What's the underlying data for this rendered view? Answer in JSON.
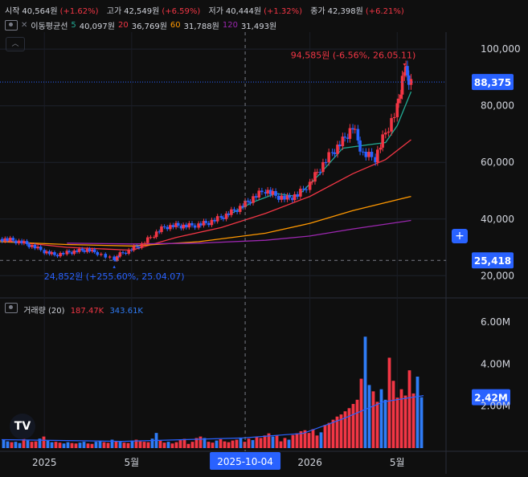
{
  "header": {
    "open_label": "시작",
    "open_value": "40,564원",
    "open_change": "(+1.62%)",
    "high_label": "고가",
    "high_value": "42,549원",
    "high_change": "(+6.59%)",
    "low_label": "저가",
    "low_value": "40,444원",
    "low_change": "(+1.32%)",
    "close_label": "종가",
    "close_value": "42,398원",
    "close_change": "(+6.21%)"
  },
  "ma_legend": {
    "title": "이동평균선",
    "p5": "5",
    "v5": "40,097원",
    "p20": "20",
    "v20": "36,769원",
    "p60": "60",
    "v60": "31,788원",
    "p120": "120",
    "v120": "31,493원"
  },
  "volume_legend": {
    "title": "거래량 (20)",
    "v1": "187.47K",
    "v2": "343.61K"
  },
  "annotations": {
    "high": "94,585원 (-6.56%, 26.05.11)",
    "low": "24,852원 (+255.60%, 25.04.07)"
  },
  "price_badges": {
    "last": "88,375",
    "cursor": "25,418",
    "volume_last": "2.42M"
  },
  "crosshair_date": "2025-10-04",
  "logo_text": "TV",
  "colors": {
    "up": "#f23645",
    "down": "#2962ff",
    "volume_up": "#f23645",
    "volume_down": "#2f7cf6",
    "ma5": "#22ab94",
    "ma20": "#f23645",
    "ma60": "#ff9800",
    "ma120": "#9c27b0",
    "volume_ma": "#2962ff",
    "background": "#0f0f0f",
    "text": "#d1d4dc"
  },
  "chart_data": [
    {
      "type": "candlestick",
      "title": "",
      "y_axis": {
        "ticks": [
          20000,
          40000,
          60000,
          80000,
          100000
        ],
        "tick_labels": [
          "20,000",
          "40,000",
          "60,000",
          "80,000",
          "100,000"
        ],
        "range": [
          13000,
          106000
        ],
        "position": "right"
      },
      "x_axis": {
        "tick_labels": [
          "2025",
          "5월",
          "2026",
          "5월"
        ],
        "tick_dates": [
          "2025-01",
          "2025-05",
          "2026-01",
          "2026-05"
        ],
        "range": [
          "2024-11-01",
          "2026-06-15"
        ]
      },
      "grid": true,
      "price_series": [
        [
          "2024-11-01",
          33000
        ],
        [
          "2024-11-15",
          32600
        ],
        [
          "2024-12-01",
          31800
        ],
        [
          "2024-12-15",
          30500
        ],
        [
          "2025-01-01",
          28600
        ],
        [
          "2025-01-15",
          27300
        ],
        [
          "2025-02-01",
          28100
        ],
        [
          "2025-02-15",
          28700
        ],
        [
          "2025-03-01",
          29200
        ],
        [
          "2025-03-15",
          28000
        ],
        [
          "2025-04-07",
          25500
        ],
        [
          "2025-04-15",
          27600
        ],
        [
          "2025-05-01",
          29300
        ],
        [
          "2025-05-15",
          31000
        ],
        [
          "2025-06-01",
          34500
        ],
        [
          "2025-06-15",
          37200
        ],
        [
          "2025-07-01",
          37700
        ],
        [
          "2025-07-15",
          37500
        ],
        [
          "2025-08-01",
          38000
        ],
        [
          "2025-08-15",
          38800
        ],
        [
          "2025-09-01",
          40500
        ],
        [
          "2025-09-15",
          42400
        ],
        [
          "2025-10-01",
          44700
        ],
        [
          "2025-10-15",
          47500
        ],
        [
          "2025-11-01",
          50200
        ],
        [
          "2025-11-15",
          48200
        ],
        [
          "2025-12-01",
          47200
        ],
        [
          "2025-12-15",
          48500
        ],
        [
          "2026-01-01",
          52500
        ],
        [
          "2026-01-15",
          58000
        ],
        [
          "2026-02-01",
          63500
        ],
        [
          "2026-02-15",
          67500
        ],
        [
          "2026-03-01",
          72500
        ],
        [
          "2026-03-15",
          63000
        ],
        [
          "2026-04-01",
          61500
        ],
        [
          "2026-04-15",
          70500
        ],
        [
          "2026-05-01",
          79000
        ],
        [
          "2026-05-11",
          93000
        ],
        [
          "2026-05-20",
          88375
        ]
      ],
      "moving_averages": [
        {
          "name": "5",
          "points": [
            [
              "2025-09-15",
              42000
            ],
            [
              "2025-10-15",
              46000
            ],
            [
              "2025-11-15",
              49000
            ],
            [
              "2025-12-15",
              48000
            ],
            [
              "2026-01-15",
              56000
            ],
            [
              "2026-02-15",
              65000
            ],
            [
              "2026-03-15",
              66000
            ],
            [
              "2026-04-15",
              67000
            ],
            [
              "2026-05-01",
              73000
            ],
            [
              "2026-05-20",
              85000
            ]
          ]
        },
        {
          "name": "20",
          "points": [
            [
              "2024-11-01",
              32500
            ],
            [
              "2025-02-01",
              30000
            ],
            [
              "2025-05-01",
              29000
            ],
            [
              "2025-07-01",
              33500
            ],
            [
              "2025-09-01",
              37000
            ],
            [
              "2025-11-01",
              42000
            ],
            [
              "2026-01-01",
              48000
            ],
            [
              "2026-03-01",
              56000
            ],
            [
              "2026-04-15",
              61000
            ],
            [
              "2026-05-20",
              68000
            ]
          ]
        },
        {
          "name": "60",
          "points": [
            [
              "2024-11-01",
              32000
            ],
            [
              "2025-02-01",
              31000
            ],
            [
              "2025-05-01",
              30500
            ],
            [
              "2025-08-01",
              32000
            ],
            [
              "2025-11-01",
              35000
            ],
            [
              "2026-01-01",
              38500
            ],
            [
              "2026-03-01",
              43000
            ],
            [
              "2026-05-20",
              48000
            ]
          ]
        },
        {
          "name": "120",
          "points": [
            [
              "2025-02-01",
              31500
            ],
            [
              "2025-05-01",
              31200
            ],
            [
              "2025-08-01",
              31500
            ],
            [
              "2025-11-01",
              32500
            ],
            [
              "2026-01-01",
              34000
            ],
            [
              "2026-03-01",
              36500
            ],
            [
              "2026-05-20",
              39500
            ]
          ]
        }
      ],
      "annotations": [
        {
          "date": "2026-05-11",
          "value": 94585,
          "text": "94,585원 (-6.56%, 26.05.11)"
        },
        {
          "date": "2025-04-07",
          "value": 24852,
          "text": "24,852원 (+255.60%, 25.04.07)"
        }
      ],
      "last_price": 88375,
      "cursor_price": 25418
    },
    {
      "type": "bar",
      "title": "거래량 (20)",
      "y_axis": {
        "ticks": [
          2000000,
          4000000,
          6000000
        ],
        "tick_labels": [
          "2.00M",
          "4.00M",
          "6.00M"
        ],
        "range": [
          0,
          6800000
        ],
        "position": "right"
      },
      "volume_bars": [
        [
          0.4,
          "down"
        ],
        [
          0.32,
          "down"
        ],
        [
          0.28,
          "up"
        ],
        [
          0.3,
          "down"
        ],
        [
          0.24,
          "down"
        ],
        [
          0.5,
          "up"
        ],
        [
          0.36,
          "down"
        ],
        [
          0.3,
          "up"
        ],
        [
          0.32,
          "up"
        ],
        [
          0.45,
          "down"
        ],
        [
          0.55,
          "up"
        ],
        [
          0.35,
          "down"
        ],
        [
          0.28,
          "down"
        ],
        [
          0.3,
          "up"
        ],
        [
          0.26,
          "up"
        ],
        [
          0.22,
          "down"
        ],
        [
          0.28,
          "down"
        ],
        [
          0.24,
          "up"
        ],
        [
          0.22,
          "up"
        ],
        [
          0.26,
          "down"
        ],
        [
          0.3,
          "down"
        ],
        [
          0.22,
          "up"
        ],
        [
          0.2,
          "up"
        ],
        [
          0.3,
          "down"
        ],
        [
          0.35,
          "down"
        ],
        [
          0.28,
          "up"
        ],
        [
          0.25,
          "up"
        ],
        [
          0.4,
          "down"
        ],
        [
          0.32,
          "up"
        ],
        [
          0.3,
          "down"
        ],
        [
          0.26,
          "up"
        ],
        [
          0.24,
          "up"
        ],
        [
          0.36,
          "down"
        ],
        [
          0.4,
          "up"
        ],
        [
          0.32,
          "up"
        ],
        [
          0.3,
          "up"
        ],
        [
          0.28,
          "up"
        ],
        [
          0.45,
          "down"
        ],
        [
          0.72,
          "down"
        ],
        [
          0.35,
          "up"
        ],
        [
          0.26,
          "up"
        ],
        [
          0.3,
          "down"
        ],
        [
          0.22,
          "up"
        ],
        [
          0.28,
          "up"
        ],
        [
          0.38,
          "up"
        ],
        [
          0.44,
          "up"
        ],
        [
          0.2,
          "up"
        ],
        [
          0.3,
          "up"
        ],
        [
          0.48,
          "up"
        ],
        [
          0.55,
          "up"
        ],
        [
          0.48,
          "down"
        ],
        [
          0.3,
          "up"
        ],
        [
          0.26,
          "up"
        ],
        [
          0.36,
          "down"
        ],
        [
          0.42,
          "up"
        ],
        [
          0.32,
          "up"
        ],
        [
          0.28,
          "up"
        ],
        [
          0.36,
          "up"
        ],
        [
          0.4,
          "up"
        ],
        [
          0.5,
          "down"
        ],
        [
          0.3,
          "up"
        ],
        [
          0.45,
          "up"
        ],
        [
          0.38,
          "down"
        ],
        [
          0.55,
          "up"
        ],
        [
          0.48,
          "up"
        ],
        [
          0.6,
          "up"
        ],
        [
          0.7,
          "up"
        ],
        [
          0.55,
          "down"
        ],
        [
          0.6,
          "up"
        ],
        [
          0.32,
          "up"
        ],
        [
          0.48,
          "up"
        ],
        [
          0.4,
          "down"
        ],
        [
          0.62,
          "up"
        ],
        [
          0.7,
          "up"
        ],
        [
          0.8,
          "up"
        ],
        [
          0.85,
          "up"
        ],
        [
          0.72,
          "up"
        ],
        [
          0.9,
          "up"
        ],
        [
          0.6,
          "up"
        ],
        [
          0.75,
          "down"
        ],
        [
          1.1,
          "up"
        ],
        [
          1.2,
          "up"
        ],
        [
          1.35,
          "up"
        ],
        [
          1.5,
          "up"
        ],
        [
          1.6,
          "up"
        ],
        [
          1.75,
          "up"
        ],
        [
          1.9,
          "up"
        ],
        [
          2.1,
          "up"
        ],
        [
          2.3,
          "up"
        ],
        [
          3.3,
          "up"
        ],
        [
          5.3,
          "down"
        ],
        [
          3.0,
          "down"
        ],
        [
          2.7,
          "up"
        ],
        [
          2.2,
          "up"
        ],
        [
          2.8,
          "down"
        ],
        [
          2.3,
          "down"
        ],
        [
          4.3,
          "up"
        ],
        [
          3.2,
          "up"
        ],
        [
          2.4,
          "up"
        ],
        [
          2.8,
          "up"
        ],
        [
          2.5,
          "up"
        ],
        [
          3.7,
          "up"
        ],
        [
          2.6,
          "up"
        ],
        [
          3.4,
          "down"
        ],
        [
          2.42,
          "down"
        ]
      ],
      "volume_unit": "millions",
      "volume_ma": [
        [
          0,
          0.4
        ],
        [
          30,
          0.32
        ],
        [
          60,
          0.48
        ],
        [
          75,
          0.7
        ],
        [
          85,
          1.4
        ],
        [
          95,
          2.2
        ],
        [
          105,
          2.5
        ]
      ],
      "last_volume": 2.42
    }
  ]
}
